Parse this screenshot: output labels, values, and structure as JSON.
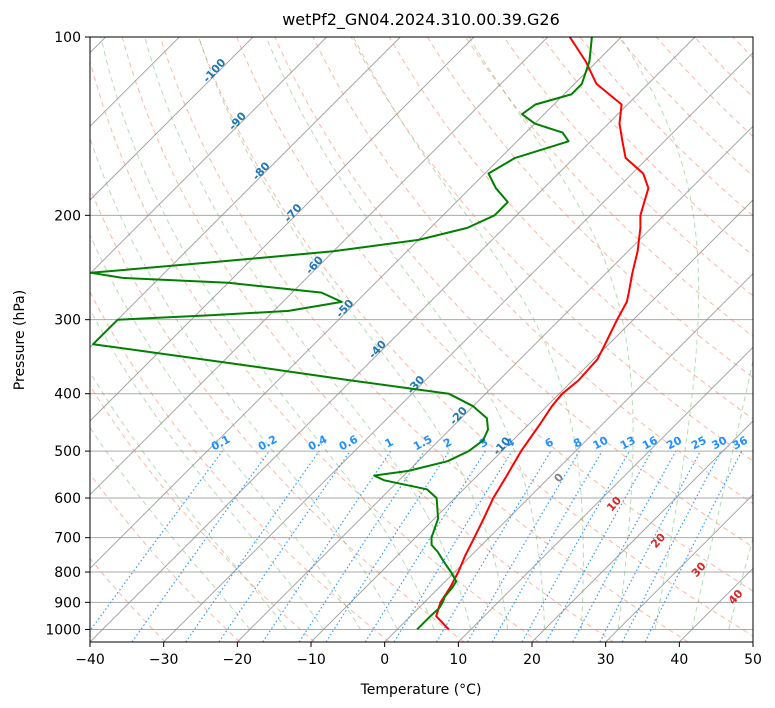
{
  "chart_data": {
    "type": "line",
    "subtype": "skew-t log-p diagram",
    "title": "wetPf2_GN04.2024.310.00.39.G26",
    "xlabel": "Temperature (°C)",
    "ylabel": "Pressure (hPa)",
    "xlim": [
      -40,
      50
    ],
    "ylim": [
      1050,
      100
    ],
    "yscale": "log",
    "grid": true,
    "x_ticks": [
      "−40",
      "−30",
      "−20",
      "−10",
      "0",
      "10",
      "20",
      "30",
      "40",
      "50"
    ],
    "y_ticks": [
      "100",
      "200",
      "300",
      "400",
      "500",
      "600",
      "700",
      "800",
      "900",
      "1000"
    ],
    "series": [
      {
        "color": "#ff0000",
        "points": [
          [
            1000,
            7.0
          ],
          [
            950,
            3.5
          ],
          [
            900,
            2.2
          ],
          [
            850,
            1.5
          ],
          [
            800,
            0.5
          ],
          [
            750,
            -0.8
          ],
          [
            700,
            -2.0
          ],
          [
            650,
            -3.3
          ],
          [
            600,
            -4.8
          ],
          [
            550,
            -6.0
          ],
          [
            500,
            -7.4
          ],
          [
            450,
            -8.5
          ],
          [
            420,
            -9.3
          ],
          [
            400,
            -9.6
          ],
          [
            380,
            -9.2
          ],
          [
            350,
            -9.5
          ],
          [
            330,
            -10.5
          ],
          [
            300,
            -12.2
          ],
          [
            280,
            -13.3
          ],
          [
            270,
            -14.3
          ],
          [
            250,
            -16.5
          ],
          [
            230,
            -18.7
          ],
          [
            210,
            -21.5
          ],
          [
            200,
            -23.2
          ],
          [
            180,
            -25.8
          ],
          [
            170,
            -28.5
          ],
          [
            160,
            -33.0
          ],
          [
            150,
            -35.7
          ],
          [
            140,
            -38.5
          ],
          [
            130,
            -40.8
          ],
          [
            120,
            -47.0
          ],
          [
            110,
            -51.5
          ],
          [
            100,
            -57.0
          ]
        ]
      },
      {
        "color": "#008000",
        "points": [
          [
            1000,
            2.7
          ],
          [
            950,
            2.7
          ],
          [
            920,
            2.8
          ],
          [
            900,
            2.5
          ],
          [
            880,
            2.0
          ],
          [
            850,
            1.8
          ],
          [
            830,
            1.5
          ],
          [
            800,
            -0.5
          ],
          [
            780,
            -2.0
          ],
          [
            760,
            -3.5
          ],
          [
            740,
            -5.0
          ],
          [
            720,
            -6.8
          ],
          [
            700,
            -7.8
          ],
          [
            650,
            -9.5
          ],
          [
            600,
            -12.5
          ],
          [
            580,
            -15.0
          ],
          [
            560,
            -22.0
          ],
          [
            550,
            -24.0
          ],
          [
            540,
            -20.0
          ],
          [
            520,
            -16.0
          ],
          [
            500,
            -14.5
          ],
          [
            480,
            -14.0
          ],
          [
            460,
            -14.8
          ],
          [
            440,
            -16.5
          ],
          [
            420,
            -20.0
          ],
          [
            400,
            -25.0
          ],
          [
            380,
            -40.0
          ],
          [
            360,
            -55.0
          ],
          [
            330,
            -80.0
          ],
          [
            300,
            -80.0
          ],
          [
            295,
            -68.0
          ],
          [
            290,
            -58.0
          ],
          [
            280,
            -52.0
          ],
          [
            270,
            -56.0
          ],
          [
            260,
            -70.0
          ],
          [
            255,
            -85.0
          ],
          [
            250,
            -90.0
          ],
          [
            240,
            -75.0
          ],
          [
            230,
            -60.0
          ],
          [
            220,
            -50.0
          ],
          [
            210,
            -45.0
          ],
          [
            200,
            -43.0
          ],
          [
            190,
            -43.0
          ],
          [
            180,
            -46.5
          ],
          [
            170,
            -49.5
          ],
          [
            160,
            -48.0
          ],
          [
            150,
            -43.0
          ],
          [
            145,
            -45.0
          ],
          [
            140,
            -50.0
          ],
          [
            135,
            -53.0
          ],
          [
            130,
            -52.5
          ],
          [
            125,
            -49.0
          ],
          [
            120,
            -49.0
          ],
          [
            110,
            -51.0
          ],
          [
            100,
            -54.0
          ]
        ]
      }
    ],
    "dry_adiabat_labels": [
      "-100",
      "-90",
      "-80",
      "-70",
      "-60",
      "-50",
      "-40",
      "-30",
      "-20",
      "-10"
    ],
    "moist_adiabat_labels": [
      "0",
      "10",
      "20",
      "30",
      "40"
    ],
    "mixing_ratio_labels": [
      "0.1",
      "0.2",
      "0.4",
      "0.6",
      "1",
      "1.5",
      "2",
      "3",
      "4",
      "6",
      "8",
      "10",
      "13",
      "16",
      "20",
      "25",
      "30",
      "36"
    ],
    "colors": {
      "temperature": "#ff0000",
      "dewpoint": "#008000",
      "isotherm": "#888888",
      "dry_adiabat": "#f08060",
      "moist_adiabat": "#60b060",
      "mixing_ratio": "#1e90ff",
      "dry_adiabat_label": "#1f77b4",
      "moist_adiabat_label": "#d62728"
    }
  }
}
